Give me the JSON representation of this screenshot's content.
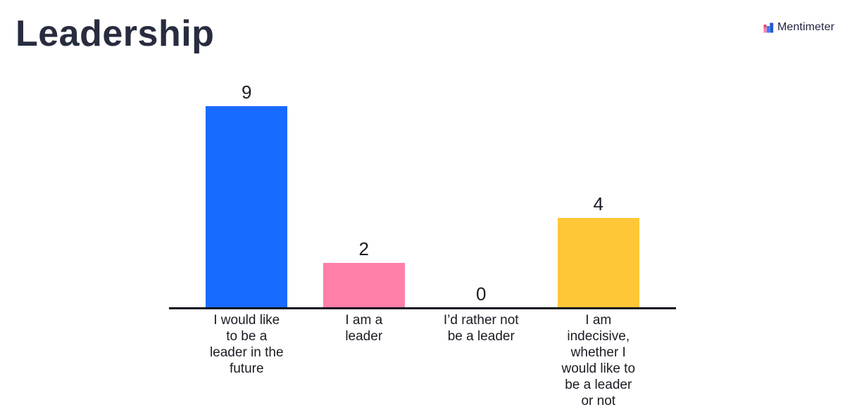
{
  "header": {
    "title": "Leadership"
  },
  "branding": {
    "logo_text": "Mentimeter"
  },
  "colors": {
    "bar_blue": "#196bff",
    "bar_pink": "#ff7fa9",
    "bar_yellow": "#fec737",
    "axis_line": "#10121f",
    "text_dark": "#1b1b24",
    "title_text": "#272c3f"
  },
  "chart_data": {
    "type": "bar",
    "title": "Leadership",
    "categories": [
      "I would like\nto be a\nleader in the\nfuture",
      "I am a\nleader",
      "I’d rather not\nbe a leader",
      "I am\nindecisive,\nwhether I\nwould like to\nbe a leader\nor not"
    ],
    "values": [
      9,
      2,
      0,
      4
    ],
    "value_labels": [
      "9",
      "2",
      "0",
      "4"
    ],
    "bar_colors": [
      "#196bff",
      "#ff7fa9",
      "#ffffff",
      "#fec737"
    ],
    "ylim": [
      0,
      9
    ],
    "xlabel": "",
    "ylabel": "",
    "grid": false,
    "legend": "none",
    "axis_line": true
  }
}
